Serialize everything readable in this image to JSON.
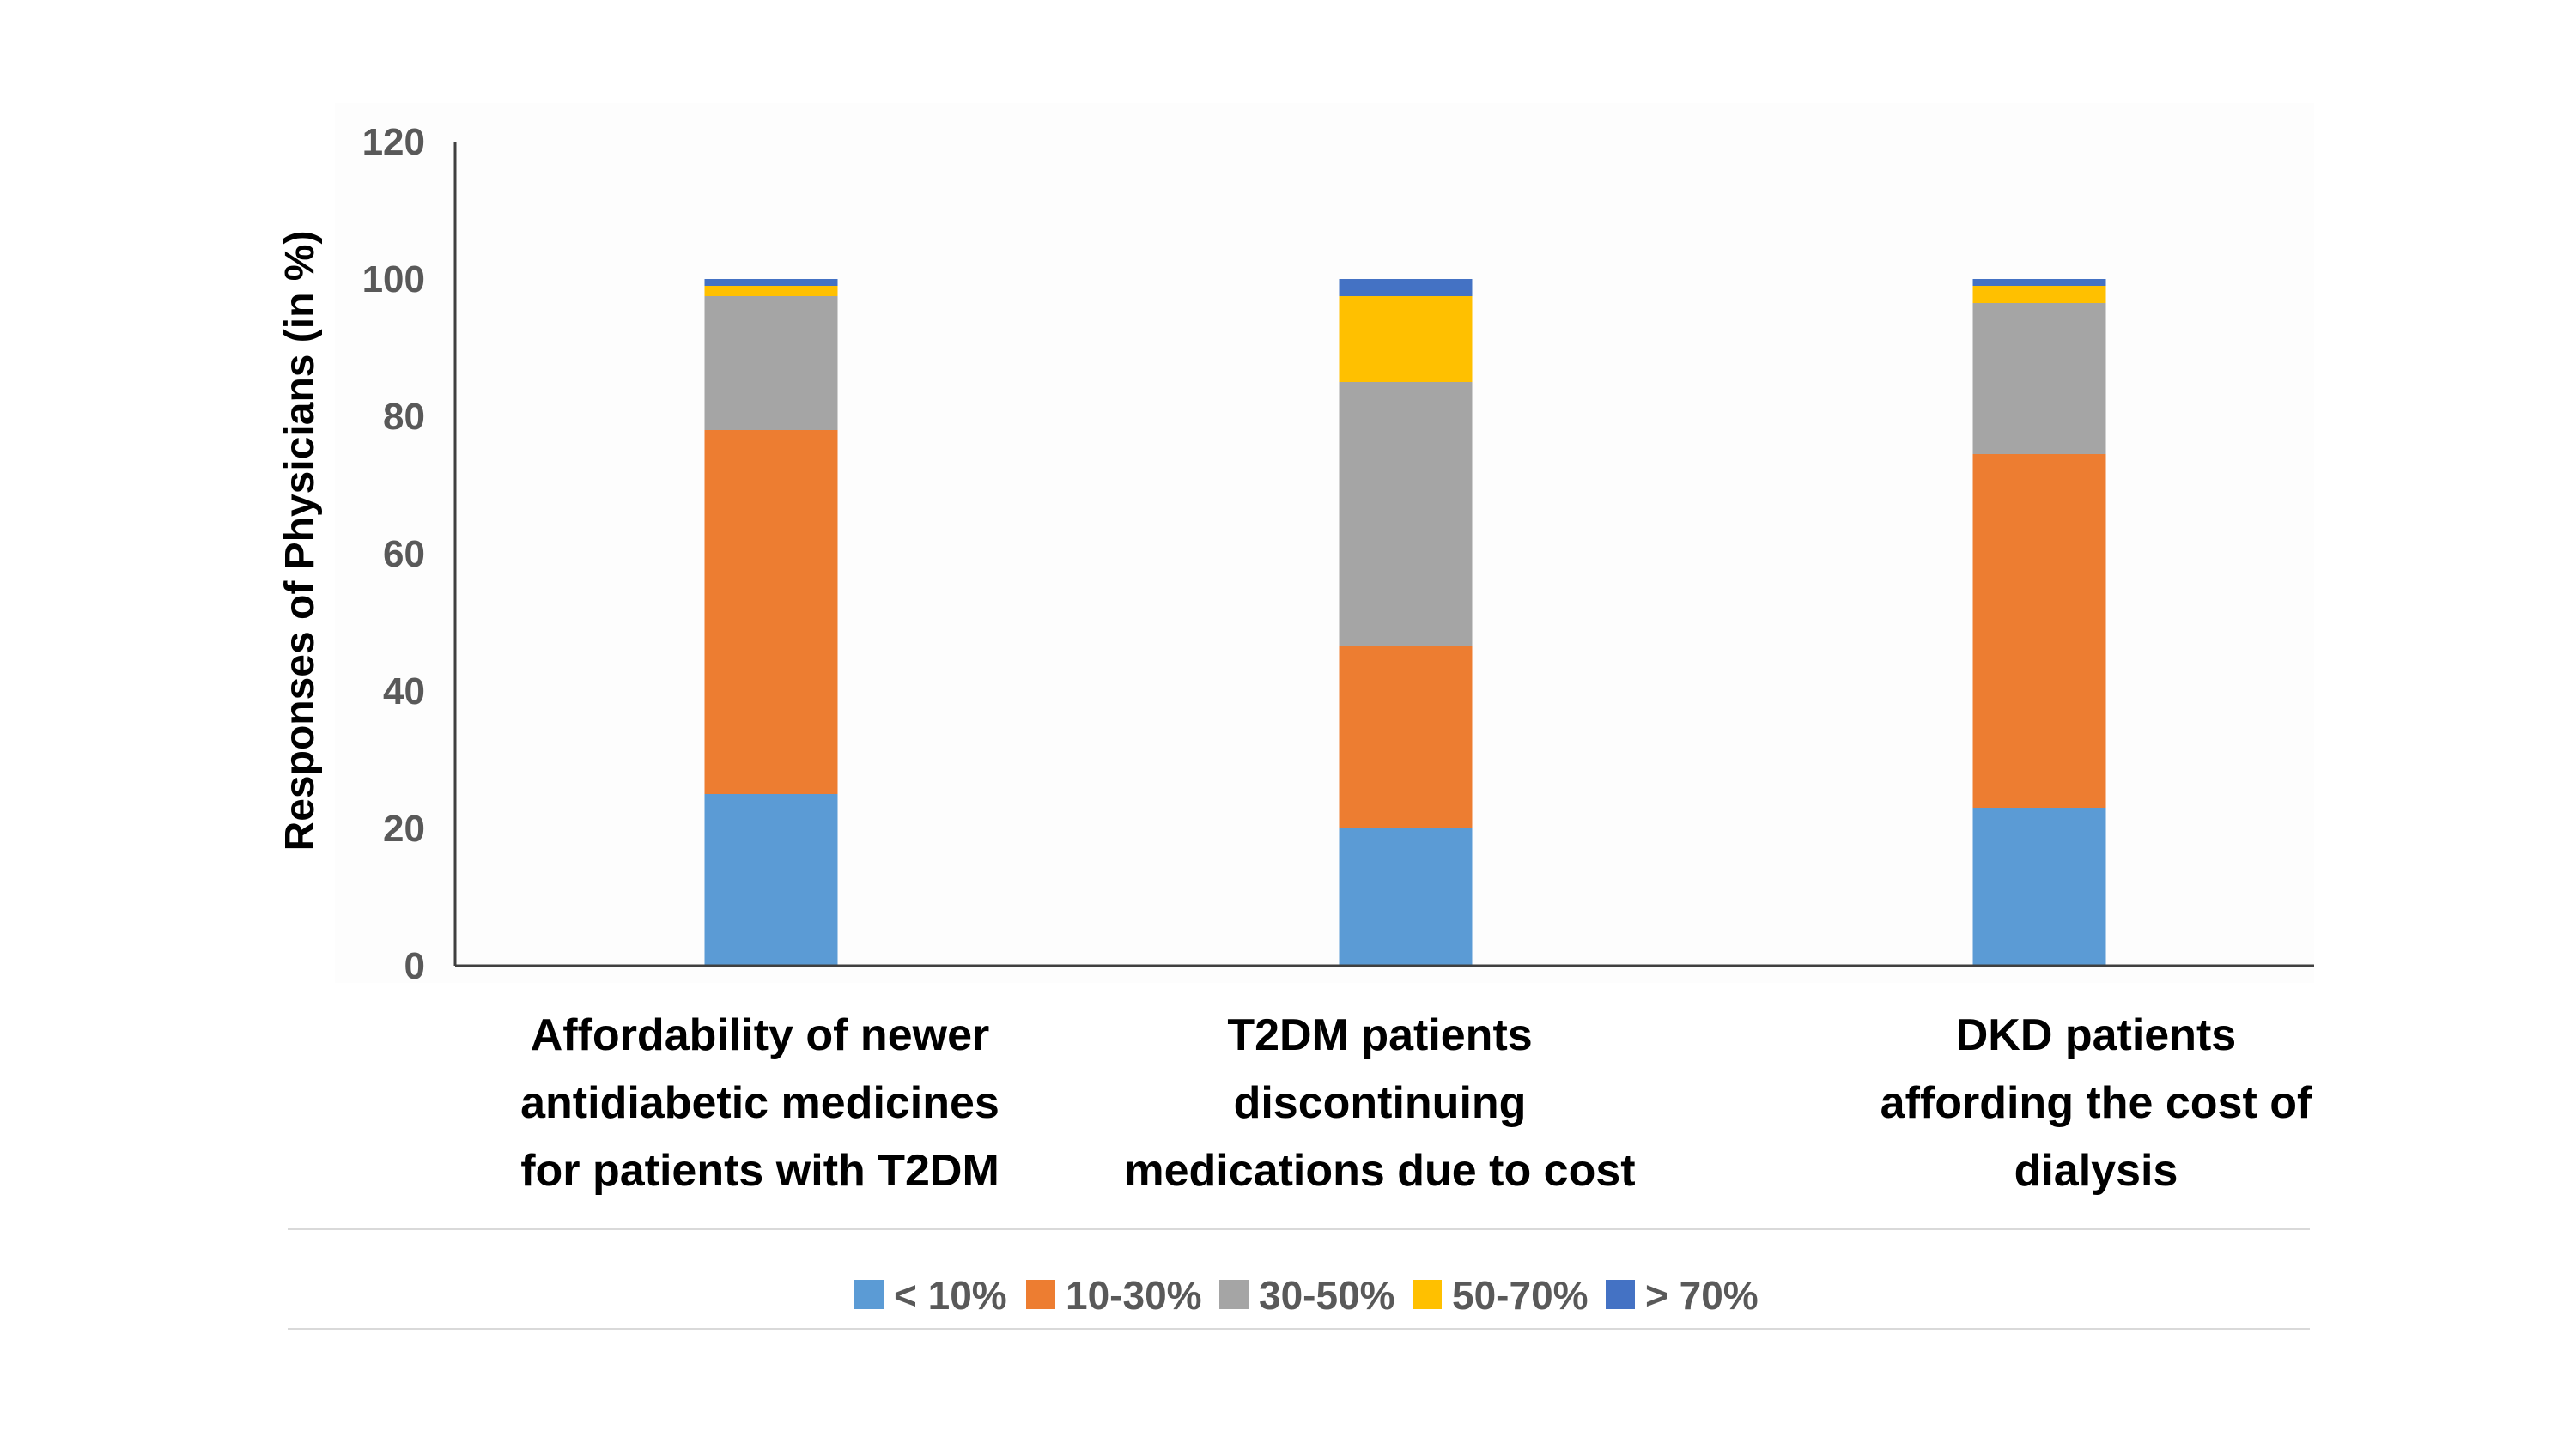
{
  "chart_data": {
    "type": "bar",
    "stacked": true,
    "categories": [
      [
        "Affordability of newer",
        "antidiabetic medicines",
        "for patients with T2DM"
      ],
      [
        "T2DM patients",
        "discontinuing",
        "medications due to cost"
      ],
      [
        "DKD patients",
        "affording the cost of",
        "dialysis"
      ]
    ],
    "series": [
      {
        "name": "< 10%",
        "color": "#5B9BD5",
        "values": [
          25,
          20,
          23
        ]
      },
      {
        "name": "10-30%",
        "color": "#ED7D31",
        "values": [
          53,
          26.5,
          51.5
        ]
      },
      {
        "name": "30-50%",
        "color": "#A5A5A5",
        "values": [
          19.5,
          38.5,
          22
        ]
      },
      {
        "name": "50-70%",
        "color": "#FFC000",
        "values": [
          1.5,
          12.5,
          2.5
        ]
      },
      {
        "name": "> 70%",
        "color": "#4472C4",
        "values": [
          1,
          2.5,
          1
        ]
      }
    ],
    "ylabel": "Responses of Physicians (in %)",
    "xlabel": "",
    "ylim": [
      0,
      120
    ],
    "yticks": [
      0,
      20,
      40,
      60,
      80,
      100,
      120
    ],
    "grid": false,
    "legend_position": "bottom"
  }
}
